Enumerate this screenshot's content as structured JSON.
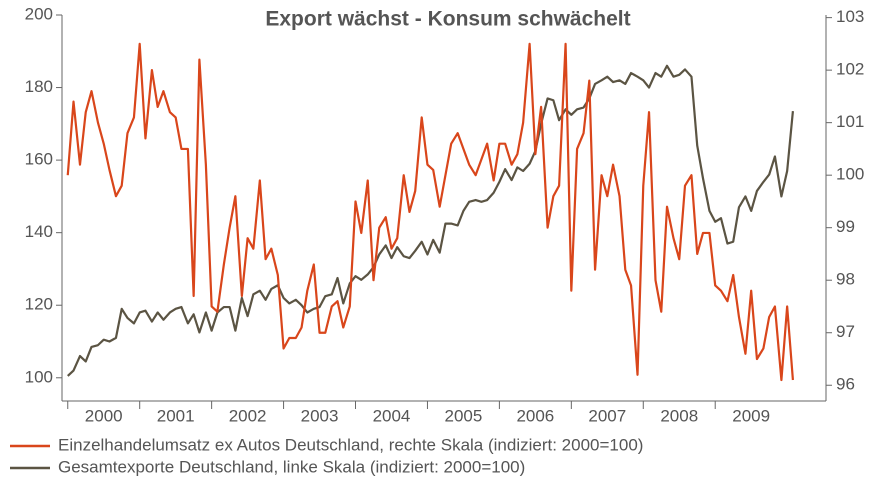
{
  "chart_data": {
    "type": "line",
    "title": "Export wächst - Konsum schwächelt",
    "x": [
      2000.0,
      2000.08,
      2000.17,
      2000.25,
      2000.33,
      2000.42,
      2000.5,
      2000.58,
      2000.67,
      2000.75,
      2000.83,
      2000.92,
      2001.0,
      2001.08,
      2001.17,
      2001.25,
      2001.33,
      2001.42,
      2001.5,
      2001.58,
      2001.67,
      2001.75,
      2001.83,
      2001.92,
      2002.0,
      2002.08,
      2002.17,
      2002.25,
      2002.33,
      2002.42,
      2002.5,
      2002.58,
      2002.67,
      2002.75,
      2002.83,
      2002.92,
      2003.0,
      2003.08,
      2003.17,
      2003.25,
      2003.33,
      2003.42,
      2003.5,
      2003.58,
      2003.67,
      2003.75,
      2003.83,
      2003.92,
      2004.0,
      2004.08,
      2004.17,
      2004.25,
      2004.33,
      2004.42,
      2004.5,
      2004.58,
      2004.67,
      2004.75,
      2004.83,
      2004.92,
      2005.0,
      2005.08,
      2005.17,
      2005.25,
      2005.33,
      2005.42,
      2005.5,
      2005.58,
      2005.67,
      2005.75,
      2005.83,
      2005.92,
      2006.0,
      2006.08,
      2006.17,
      2006.25,
      2006.33,
      2006.42,
      2006.5,
      2006.58,
      2006.67,
      2006.75,
      2006.83,
      2006.92,
      2007.0,
      2007.08,
      2007.17,
      2007.25,
      2007.33,
      2007.42,
      2007.5,
      2007.58,
      2007.67,
      2007.75,
      2007.83,
      2007.92,
      2008.0,
      2008.08,
      2008.17,
      2008.25,
      2008.33,
      2008.42,
      2008.5,
      2008.58,
      2008.67,
      2008.75,
      2008.83,
      2008.92,
      2009.0,
      2009.08,
      2009.17,
      2009.25,
      2009.33,
      2009.42,
      2009.5,
      2009.58,
      2009.67,
      2009.75,
      2009.83,
      2009.92,
      2010.0,
      2010.08
    ],
    "series": [
      {
        "name": "Einzelhandelumsatz ex Autos Deutschland, rechte Skala (indiziert: 2000=100)",
        "color": "#d9461b",
        "axis": "y2",
        "values": [
          100.0,
          101.4,
          100.2,
          101.2,
          101.6,
          101.0,
          100.6,
          100.1,
          99.6,
          99.8,
          100.8,
          101.1,
          102.5,
          100.7,
          102.0,
          101.3,
          101.6,
          101.2,
          101.1,
          100.5,
          100.5,
          97.7,
          102.2,
          100.2,
          97.5,
          97.4,
          98.3,
          99.0,
          99.6,
          97.7,
          98.8,
          98.6,
          99.9,
          98.4,
          98.6,
          98.1,
          96.7,
          96.9,
          96.9,
          97.1,
          97.8,
          98.3,
          97.0,
          97.0,
          97.5,
          97.6,
          97.1,
          97.5,
          99.5,
          98.9,
          99.9,
          98.0,
          99.0,
          99.2,
          98.6,
          98.8,
          100.0,
          99.3,
          99.7,
          101.1,
          100.2,
          100.1,
          99.4,
          100.0,
          100.6,
          100.8,
          100.5,
          100.2,
          100.0,
          100.3,
          100.6,
          99.9,
          100.6,
          100.6,
          100.2,
          100.4,
          101.0,
          102.5,
          100.4,
          101.3,
          99.0,
          99.6,
          99.8,
          102.5,
          97.8,
          100.5,
          100.8,
          101.8,
          98.2,
          100.0,
          99.6,
          100.2,
          99.6,
          98.2,
          97.9,
          96.2,
          99.8,
          101.2,
          98.0,
          97.4,
          99.4,
          98.8,
          98.4,
          99.8,
          100.0,
          98.5,
          98.9,
          98.9,
          97.9,
          97.8,
          97.6,
          98.1,
          97.3,
          96.6,
          97.8,
          96.5,
          96.7,
          97.3,
          97.5,
          96.1,
          97.5,
          96.1
        ]
      },
      {
        "name": "Gesamtexporte Deutschland, linke Skala (indiziert: 2000=100)",
        "color": "#5b5443",
        "axis": "y",
        "values": [
          100.5,
          102,
          106,
          104.5,
          108.5,
          109,
          110.5,
          110,
          111,
          119,
          116.5,
          115,
          118,
          118.5,
          115.5,
          118,
          116,
          118,
          119,
          119.5,
          115,
          117.5,
          112.5,
          118,
          113,
          118,
          119.5,
          119.5,
          113,
          122,
          117,
          123,
          124,
          121.5,
          124.5,
          125.5,
          122,
          120.5,
          121.5,
          120,
          118,
          119,
          119.5,
          122.5,
          123,
          127.5,
          120.5,
          126,
          128,
          127,
          128.5,
          130.5,
          134,
          136.5,
          133,
          136,
          133.5,
          133,
          135,
          137.5,
          134,
          138,
          134.5,
          142.5,
          142.5,
          142,
          146,
          148.5,
          149,
          148.5,
          149,
          151,
          154,
          157.5,
          154.5,
          158,
          157,
          159,
          162.5,
          170,
          177,
          176.5,
          171,
          174,
          172.5,
          174,
          174.5,
          177,
          181,
          182,
          183,
          181.5,
          182,
          181,
          184,
          183,
          182,
          180,
          184,
          183,
          186,
          183,
          183.5,
          185,
          183,
          164,
          155,
          146,
          143,
          144,
          137,
          137.5,
          147,
          150,
          146,
          151.5,
          154,
          156,
          161,
          150,
          157,
          173.5
        ]
      }
    ],
    "xlim": [
      1999.92,
      2010.54
    ],
    "xticks": [
      {
        "value": 2000.5,
        "label": "2000"
      },
      {
        "value": 2001.5,
        "label": "2001"
      },
      {
        "value": 2002.5,
        "label": "2002"
      },
      {
        "value": 2003.5,
        "label": "2003"
      },
      {
        "value": 2004.5,
        "label": "2004"
      },
      {
        "value": 2005.5,
        "label": "2005"
      },
      {
        "value": 2006.5,
        "label": "2006"
      },
      {
        "value": 2007.5,
        "label": "2007"
      },
      {
        "value": 2008.5,
        "label": "2008"
      },
      {
        "value": 2009.5,
        "label": "2009"
      }
    ],
    "ylim": [
      93.6,
      200
    ],
    "yticks": [
      100,
      120,
      140,
      160,
      180,
      200
    ],
    "y2lim": [
      95.7,
      103.05
    ],
    "y2ticks": [
      96,
      97,
      98,
      99,
      100,
      101,
      102,
      103
    ]
  }
}
